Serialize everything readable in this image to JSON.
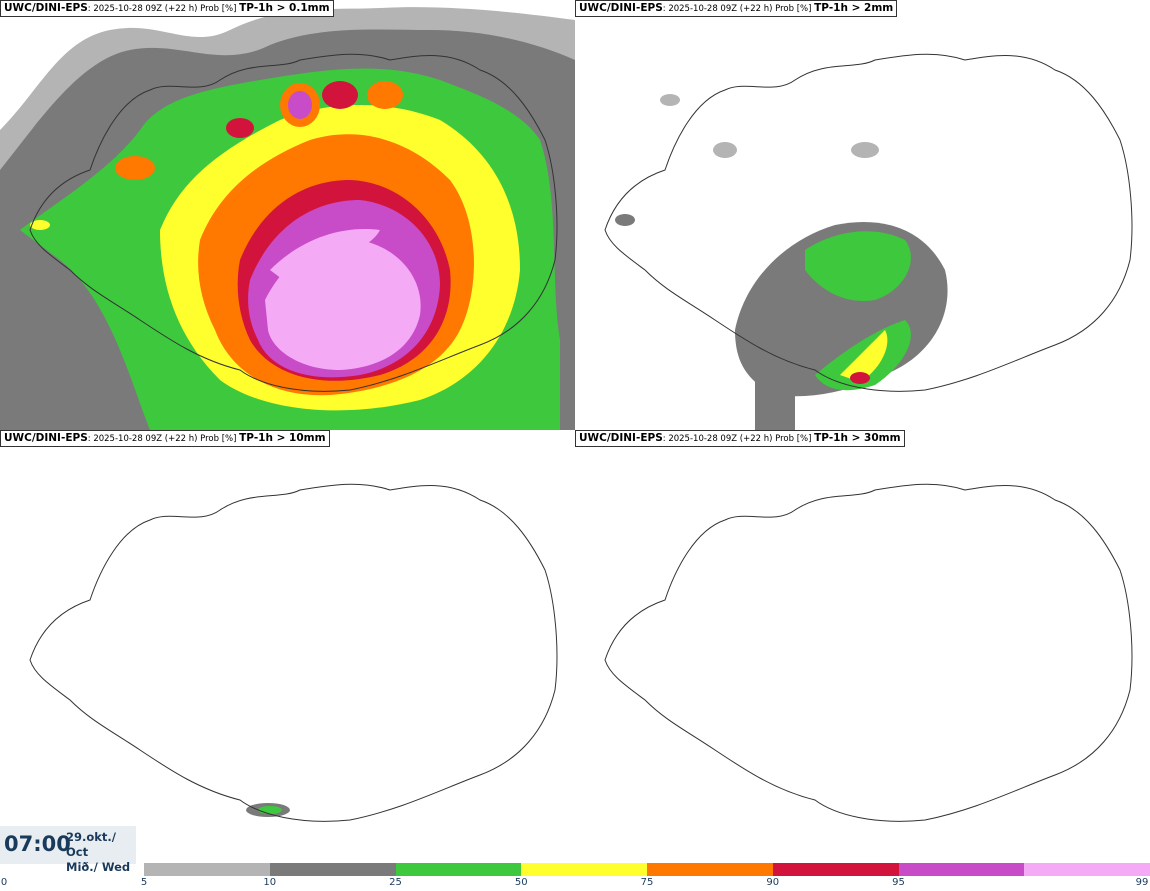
{
  "panels": [
    {
      "label": "UWC/DINI-EPS",
      "meta": ": 2025-10-28 09Z (+22 h) Prob [%] ",
      "var": "TP-1h > 0.1mm"
    },
    {
      "label": "UWC/DINI-EPS",
      "meta": ": 2025-10-28 09Z (+22 h) Prob [%] ",
      "var": "TP-1h > 2mm"
    },
    {
      "label": "UWC/DINI-EPS",
      "meta": ": 2025-10-28 09Z (+22 h) Prob [%] ",
      "var": "TP-1h > 10mm"
    },
    {
      "label": "UWC/DINI-EPS",
      "meta": ": 2025-10-28 09Z (+22 h) Prob [%] ",
      "var": "TP-1h > 30mm"
    }
  ],
  "valid_time": {
    "time": "07:00",
    "date_line1": "29.okt./ Oct",
    "date_line2": "Mið./ Wed"
  },
  "colorbar": {
    "ticks": [
      "0",
      "5",
      "10",
      "25",
      "50",
      "75",
      "90",
      "95",
      "99"
    ],
    "colors": [
      "#b4b4b4",
      "#7a7a7a",
      "#3ec83e",
      "#ffff2e",
      "#ff7800",
      "#d2143c",
      "#c84bc8",
      "#f5aaf5"
    ]
  }
}
